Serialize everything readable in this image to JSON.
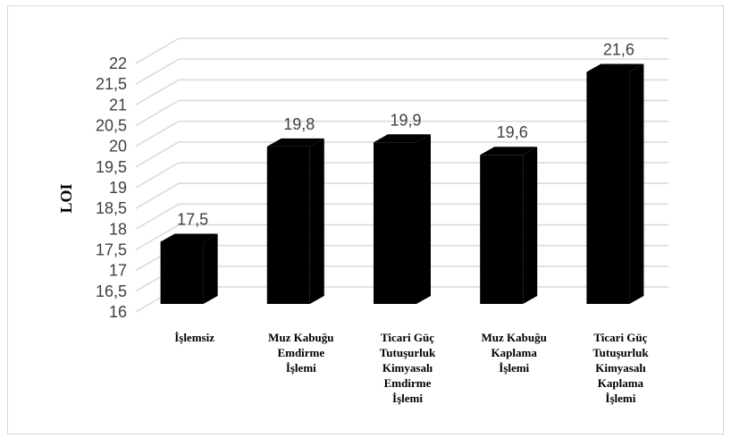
{
  "chart_data": {
    "type": "bar",
    "style": "3d-column",
    "ylabel": "LOI",
    "ylim": [
      16,
      22
    ],
    "ytick_step": 0.5,
    "yticks": [
      "16",
      "16,5",
      "17",
      "17,5",
      "18",
      "18,5",
      "19",
      "19,5",
      "20",
      "20,5",
      "21",
      "21,5",
      "22"
    ],
    "categories": [
      [
        "İşlemsiz"
      ],
      [
        "Muz Kabuğu",
        "Emdirme",
        "İşlemi"
      ],
      [
        "Ticari Güç",
        "Tutuşurluk",
        "Kimyasalı",
        "Emdirme",
        "İşlemi"
      ],
      [
        "Muz Kabuğu",
        "Kaplama",
        "İşlemi"
      ],
      [
        "Ticari Güç",
        "Tutuşurluk",
        "Kimyasalı",
        "Kaplama",
        "İşlemi"
      ]
    ],
    "values": [
      17.5,
      19.8,
      19.9,
      19.6,
      21.6
    ],
    "data_labels": [
      "17,5",
      "19,8",
      "19,9",
      "19,6",
      "21,6"
    ],
    "grid": true,
    "bar_color": "#000000",
    "grid_color": "#d9d9d9"
  }
}
